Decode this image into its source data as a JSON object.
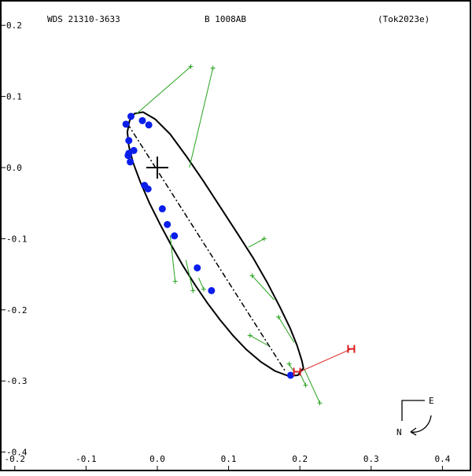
{
  "chart_data": {
    "type": "scatter",
    "header": {
      "left": "WDS 21310-3633",
      "center": "B  1008AB",
      "right": "(Tok2023e)"
    },
    "xlim": [
      -0.22,
      0.44
    ],
    "ylim": [
      -0.4,
      0.2
    ],
    "x_ticks": [
      {
        "value": -0.2,
        "label": "-0.2"
      },
      {
        "value": -0.1,
        "label": "-0.1"
      },
      {
        "value": 0.0,
        "label": "0.0"
      },
      {
        "value": 0.1,
        "label": "0.1"
      },
      {
        "value": 0.2,
        "label": "0.2"
      },
      {
        "value": 0.3,
        "label": "0.3"
      },
      {
        "value": 0.4,
        "label": "0.4"
      }
    ],
    "y_ticks": [
      {
        "value": 0.2,
        "label": "0.2"
      },
      {
        "value": 0.1,
        "label": "0.1"
      },
      {
        "value": 0.0,
        "label": "0.0"
      },
      {
        "value": -0.1,
        "label": "-0.1"
      },
      {
        "value": -0.2,
        "label": "-0.2"
      },
      {
        "value": -0.3,
        "label": "-0.3"
      },
      {
        "value": -0.4,
        "label": "-0.4"
      }
    ],
    "primary": {
      "x": 0.0,
      "y": 0.0
    },
    "orbit": {
      "points": [
        [
          0.205,
          -0.282
        ],
        [
          0.203,
          -0.272
        ],
        [
          0.196,
          -0.25
        ],
        [
          0.186,
          -0.225
        ],
        [
          0.172,
          -0.196
        ],
        [
          0.155,
          -0.163
        ],
        [
          0.135,
          -0.128
        ],
        [
          0.112,
          -0.092
        ],
        [
          0.088,
          -0.055
        ],
        [
          0.064,
          -0.018
        ],
        [
          0.04,
          0.017
        ],
        [
          0.018,
          0.047
        ],
        [
          -0.003,
          0.068
        ],
        [
          -0.02,
          0.078
        ],
        [
          -0.032,
          0.076
        ],
        [
          -0.039,
          0.066
        ],
        [
          -0.042,
          0.05
        ],
        [
          -0.04,
          0.03
        ],
        [
          -0.034,
          0.007
        ],
        [
          -0.024,
          -0.02
        ],
        [
          -0.011,
          -0.05
        ],
        [
          0.004,
          -0.08
        ],
        [
          0.02,
          -0.11
        ],
        [
          0.036,
          -0.138
        ],
        [
          0.053,
          -0.165
        ],
        [
          0.07,
          -0.19
        ],
        [
          0.088,
          -0.214
        ],
        [
          0.106,
          -0.236
        ],
        [
          0.125,
          -0.256
        ],
        [
          0.145,
          -0.273
        ],
        [
          0.165,
          -0.286
        ],
        [
          0.184,
          -0.293
        ],
        [
          0.197,
          -0.292
        ]
      ],
      "line_of_nodes": [
        [
          -0.042,
          0.062
        ],
        [
          0.18,
          -0.287
        ]
      ]
    },
    "observations_blue": [
      [
        -0.037,
        0.072
      ],
      [
        -0.021,
        0.066
      ],
      [
        -0.012,
        0.06
      ],
      [
        -0.044,
        0.061
      ],
      [
        -0.04,
        0.038
      ],
      [
        -0.033,
        0.024
      ],
      [
        -0.04,
        0.02
      ],
      [
        -0.041,
        0.017
      ],
      [
        -0.038,
        0.008
      ],
      [
        -0.018,
        -0.025
      ],
      [
        -0.013,
        -0.03
      ],
      [
        0.007,
        -0.058
      ],
      [
        0.014,
        -0.08
      ],
      [
        0.024,
        -0.096
      ],
      [
        0.056,
        -0.141
      ],
      [
        0.076,
        -0.173
      ],
      [
        0.187,
        -0.292
      ]
    ],
    "observations_green": [
      {
        "obs": [
          0.047,
          0.142
        ],
        "pred": [
          -0.03,
          0.075
        ]
      },
      {
        "obs": [
          0.078,
          0.14
        ],
        "pred": [
          0.045,
          0.0
        ]
      },
      {
        "obs": [
          0.15,
          -0.1
        ],
        "pred": [
          0.128,
          -0.112
        ]
      },
      {
        "obs": [
          0.025,
          -0.16
        ],
        "pred": [
          0.018,
          -0.095
        ]
      },
      {
        "obs": [
          0.05,
          -0.173
        ],
        "pred": [
          0.04,
          -0.13
        ]
      },
      {
        "obs": [
          0.065,
          -0.171
        ],
        "pred": [
          0.058,
          -0.155
        ]
      },
      {
        "obs": [
          0.133,
          -0.152
        ],
        "pred": [
          0.164,
          -0.186
        ]
      },
      {
        "obs": [
          0.17,
          -0.21
        ],
        "pred": [
          0.192,
          -0.246
        ]
      },
      {
        "obs": [
          0.13,
          -0.236
        ],
        "pred": [
          0.155,
          -0.25
        ]
      },
      {
        "obs": [
          0.185,
          -0.276
        ],
        "pred": [
          0.19,
          -0.285
        ]
      },
      {
        "obs": [
          0.208,
          -0.306
        ],
        "pred": [
          0.2,
          -0.289
        ]
      },
      {
        "obs": [
          0.228,
          -0.331
        ],
        "pred": [
          0.206,
          -0.283
        ]
      }
    ],
    "observations_red": [
      {
        "obs": [
          0.272,
          -0.255
        ],
        "pred": [
          0.2,
          -0.287
        ],
        "label": "H"
      },
      {
        "obs": [
          0.196,
          -0.287
        ],
        "pred": [
          0.2,
          -0.287
        ],
        "label": "H"
      }
    ],
    "compass": {
      "east": "E",
      "north": "N"
    },
    "colors": {
      "orbit": "#000000",
      "blue": "#0a1eeb",
      "green": "#25a11b",
      "red": "#db1d1d",
      "frame": "#000000"
    }
  }
}
